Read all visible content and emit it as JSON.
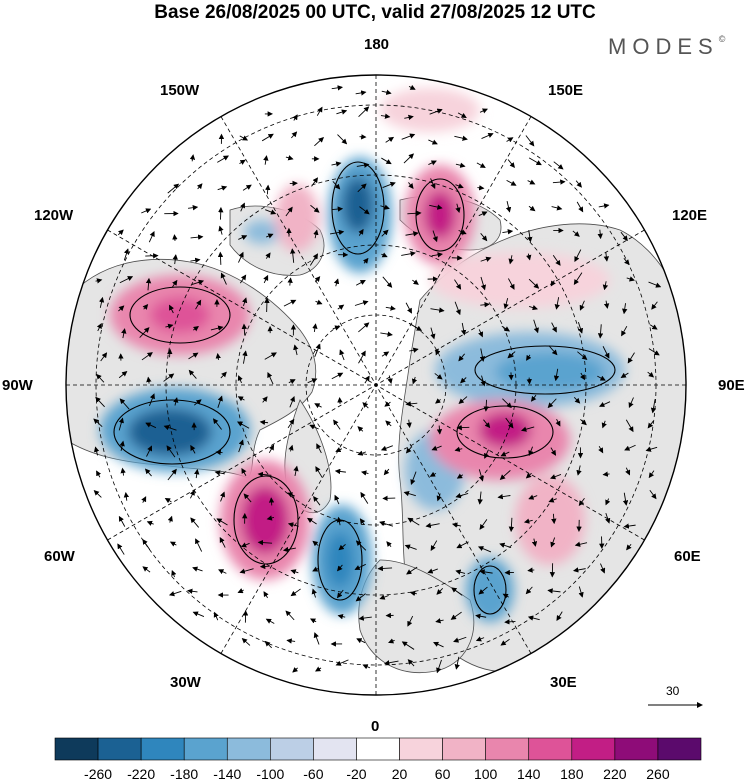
{
  "title": "Base 26/08/2025 00 UTC, valid 27/08/2025 12 UTC",
  "brand": "MODES",
  "brand_mark": "©",
  "longitude_labels": {
    "lon_180": "180",
    "lon_150w": "150W",
    "lon_150e": "150E",
    "lon_120w": "120W",
    "lon_120e": "120E",
    "lon_90w": "90W",
    "lon_90e": "90E",
    "lon_60w": "60W",
    "lon_60e": "60E",
    "lon_30w": "30W",
    "lon_30e": "30E",
    "lon_0": "0"
  },
  "reference_vector": {
    "label": "30"
  },
  "colorbar": {
    "labels": [
      "-260",
      "-220",
      "-180",
      "-140",
      "-100",
      "-60",
      "-20",
      "20",
      "60",
      "100",
      "140",
      "180",
      "220",
      "260"
    ],
    "colors": [
      "#0e3a5b",
      "#1b6193",
      "#2f86bd",
      "#5aa3cf",
      "#8cbbdc",
      "#bccfe6",
      "#e3e4f1",
      "#ffffff",
      "#f7d3dc",
      "#f1b3c6",
      "#e986ad",
      "#de5398",
      "#c21e85",
      "#8e0c78",
      "#5b0a6c"
    ]
  },
  "colors": {
    "land": "#e5e5e5",
    "ocean": "#ffffff",
    "coast": "#4d4d4d"
  }
}
